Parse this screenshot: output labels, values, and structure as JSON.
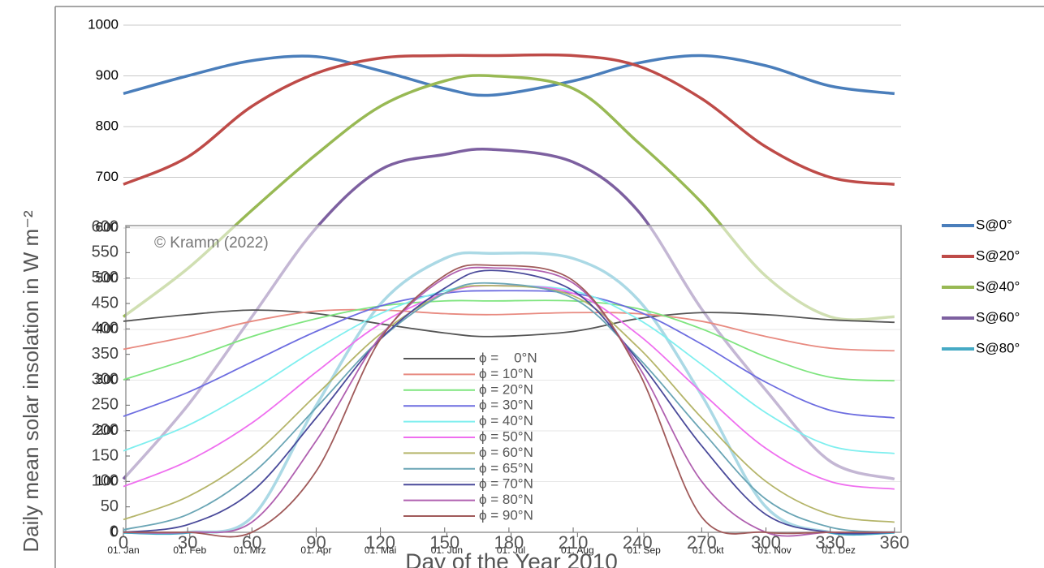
{
  "chart_data": [
    {
      "type": "line",
      "x": [
        0,
        30,
        60,
        90,
        120,
        150,
        172,
        210,
        240,
        270,
        300,
        330,
        360
      ],
      "xlim": [
        0,
        365
      ],
      "xticks": [
        {
          "value": 0,
          "label": "01. Jan"
        },
        {
          "value": 31,
          "label": "01. Feb"
        },
        {
          "value": 59,
          "label": "01. Mrz"
        },
        {
          "value": 90,
          "label": "01. Apr"
        },
        {
          "value": 120,
          "label": "01. Mai"
        },
        {
          "value": 151,
          "label": "01. Jun"
        },
        {
          "value": 181,
          "label": "01. Jul"
        },
        {
          "value": 212,
          "label": "01. Aug"
        },
        {
          "value": 243,
          "label": "01. Sep"
        },
        {
          "value": 273,
          "label": "01. Okt"
        },
        {
          "value": 304,
          "label": "01. Nov"
        },
        {
          "value": 334,
          "label": "01. Dez"
        }
      ],
      "ylim": [
        0,
        1000
      ],
      "yticks": [
        0,
        100,
        200,
        300,
        400,
        500,
        600,
        700,
        800,
        900,
        1000
      ],
      "grid": true,
      "legend": "right",
      "ylabel": "Daily mean solar insolation in W m⁻²",
      "series": [
        {
          "name": "S@0°",
          "color": "#4a7ebb",
          "values": [
            865,
            900,
            930,
            938,
            910,
            875,
            862,
            890,
            925,
            940,
            920,
            880,
            865
          ]
        },
        {
          "name": "S@20°",
          "color": "#be4b48",
          "values": [
            686,
            740,
            840,
            905,
            935,
            940,
            940,
            940,
            920,
            855,
            760,
            700,
            686
          ]
        },
        {
          "name": "S@40°",
          "color": "#98b954",
          "values": [
            425,
            520,
            635,
            745,
            840,
            890,
            900,
            875,
            770,
            650,
            505,
            425,
            425
          ]
        },
        {
          "name": "S@60°",
          "color": "#7d60a0",
          "values": [
            105,
            250,
            425,
            600,
            715,
            745,
            755,
            730,
            635,
            440,
            280,
            140,
            105
          ]
        },
        {
          "name": "S@80°",
          "color": "#46aac5",
          "values": [
            0,
            0,
            30,
            250,
            450,
            540,
            550,
            540,
            460,
            270,
            50,
            0,
            0
          ]
        }
      ]
    },
    {
      "type": "line",
      "x": [
        0,
        30,
        60,
        90,
        120,
        150,
        172,
        210,
        240,
        270,
        300,
        330,
        360
      ],
      "xlim": [
        0,
        365
      ],
      "xticks": [
        0,
        30,
        60,
        90,
        120,
        150,
        180,
        210,
        240,
        270,
        300,
        330,
        360
      ],
      "ylim": [
        0,
        600
      ],
      "yticks": [
        0,
        50,
        100,
        150,
        200,
        250,
        300,
        350,
        400,
        450,
        500,
        550,
        600
      ],
      "legend": "center",
      "xlabel": "Day of the Year 2010",
      "annotation": "© Kramm (2022)",
      "series": [
        {
          "name": "ϕ =    0°N",
          "color": "#555555",
          "values": [
            415,
            428,
            437,
            430,
            410,
            392,
            385,
            395,
            420,
            432,
            428,
            418,
            413
          ]
        },
        {
          "name": "ϕ = 10°N",
          "color": "#e88a80",
          "values": [
            360,
            385,
            415,
            435,
            437,
            430,
            428,
            432,
            430,
            415,
            385,
            362,
            357
          ]
        },
        {
          "name": "ϕ = 20°N",
          "color": "#7fe57f",
          "values": [
            300,
            340,
            385,
            420,
            445,
            455,
            455,
            455,
            440,
            400,
            345,
            305,
            298
          ]
        },
        {
          "name": "ϕ = 30°N",
          "color": "#6d6de0",
          "values": [
            228,
            275,
            335,
            395,
            445,
            470,
            475,
            470,
            435,
            370,
            295,
            240,
            225
          ]
        },
        {
          "name": "ϕ = 40°N",
          "color": "#7fefef",
          "values": [
            160,
            210,
            280,
            360,
            430,
            475,
            485,
            475,
            420,
            330,
            235,
            170,
            155
          ]
        },
        {
          "name": "ϕ = 50°N",
          "color": "#ef6fef",
          "values": [
            90,
            140,
            215,
            315,
            410,
            470,
            485,
            470,
            390,
            275,
            165,
            100,
            85
          ]
        },
        {
          "name": "ϕ = 60°N",
          "color": "#b5b56a",
          "values": [
            25,
            70,
            150,
            270,
            390,
            470,
            485,
            465,
            365,
            225,
            100,
            35,
            20
          ]
        },
        {
          "name": "ϕ = 65°N",
          "color": "#6aa5b5",
          "values": [
            5,
            35,
            115,
            245,
            380,
            470,
            490,
            460,
            345,
            200,
            65,
            10,
            0
          ]
        },
        {
          "name": "ϕ = 70°N",
          "color": "#4a4a9a",
          "values": [
            0,
            15,
            80,
            225,
            380,
            480,
            515,
            475,
            340,
            170,
            35,
            0,
            0
          ]
        },
        {
          "name": "ϕ = 80°N",
          "color": "#b060b0",
          "values": [
            0,
            0,
            20,
            180,
            385,
            500,
            520,
            490,
            330,
            100,
            0,
            0,
            0
          ]
        },
        {
          "name": "ϕ = 90°N",
          "color": "#a05a5a",
          "values": [
            0,
            0,
            0,
            120,
            380,
            505,
            525,
            495,
            320,
            30,
            0,
            0,
            0
          ]
        }
      ]
    }
  ]
}
